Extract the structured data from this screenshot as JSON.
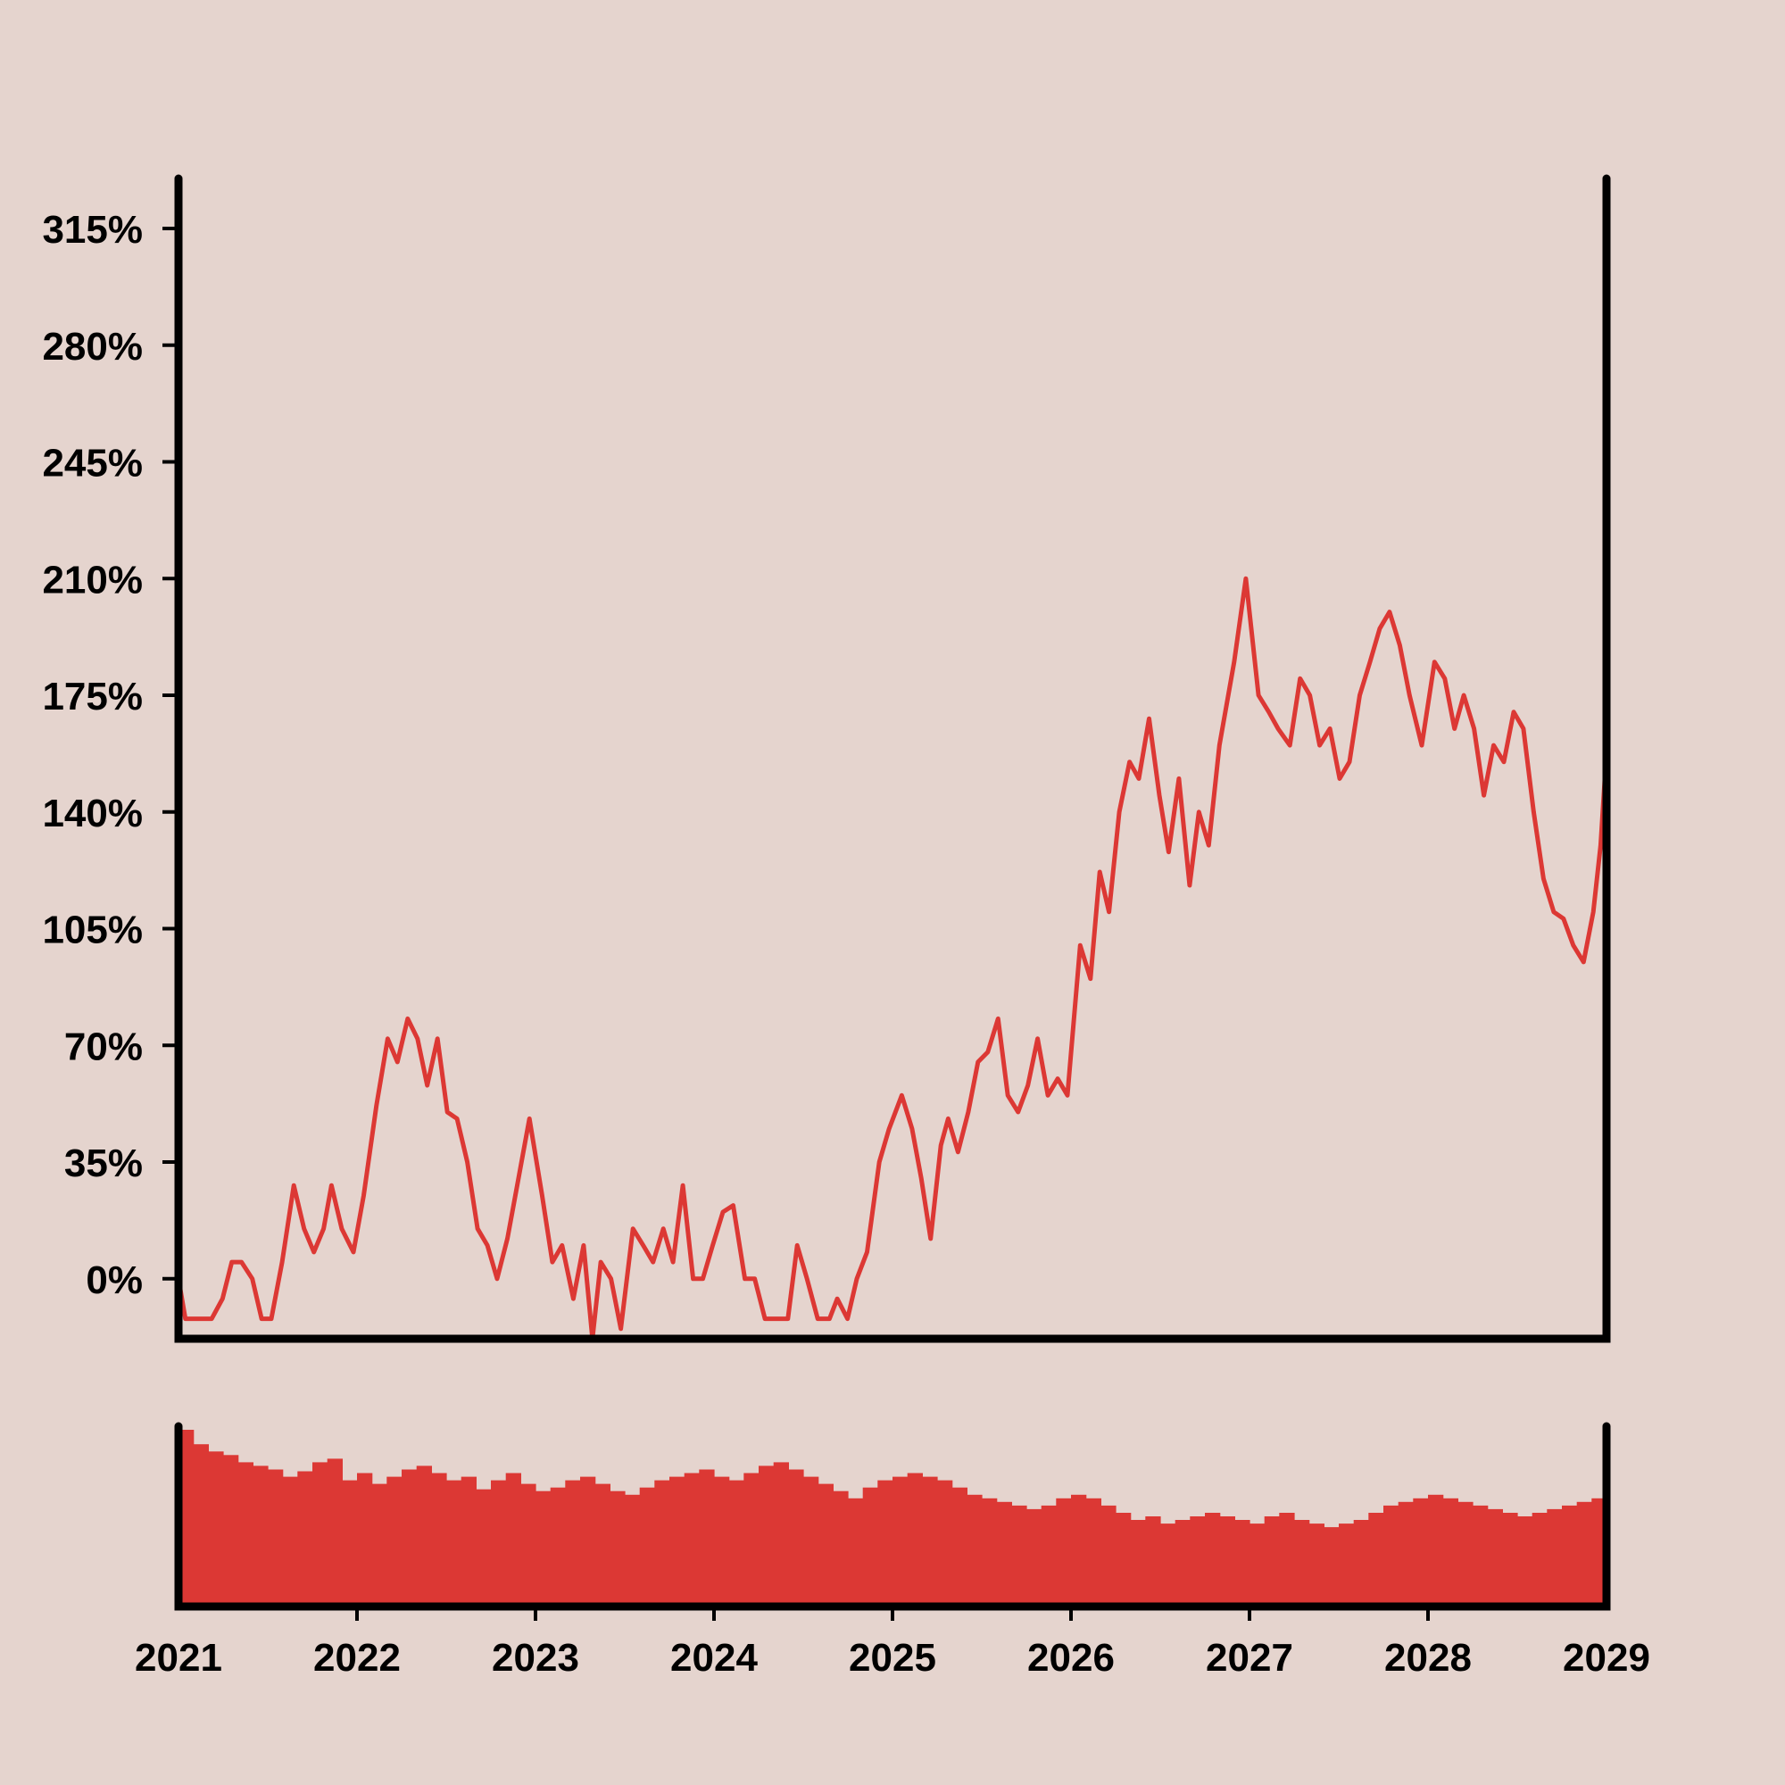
{
  "chart_data": {
    "type": "line",
    "title": "",
    "xlabel": "",
    "ylabel": "",
    "colors": {
      "background": "#e5d4ce",
      "line": "#dc3834",
      "volume": "#dc3834",
      "axis": "#000000"
    },
    "x_ticks": [
      "2021",
      "2022",
      "2023",
      "2024",
      "2025",
      "2026",
      "2027",
      "2028",
      "2029"
    ],
    "y_ticks": [
      "0%",
      "35%",
      "70%",
      "105%",
      "140%",
      "175%",
      "210%",
      "245%",
      "280%",
      "315%"
    ],
    "xlim": [
      "2021-01-01",
      "2029-01-01"
    ],
    "ylim": [
      -18,
      330
    ],
    "grid": false,
    "legend": "none",
    "series": [
      {
        "values": [
          [
            "2021-01-01",
            0
          ],
          [
            "2021-01-15",
            -12
          ],
          [
            "2021-02-15",
            -12
          ],
          [
            "2021-03-10",
            -12
          ],
          [
            "2021-04-01",
            -6
          ],
          [
            "2021-04-20",
            5
          ],
          [
            "2021-05-10",
            5
          ],
          [
            "2021-06-01",
            0
          ],
          [
            "2021-06-20",
            -12
          ],
          [
            "2021-07-10",
            -12
          ],
          [
            "2021-08-01",
            5
          ],
          [
            "2021-08-25",
            28
          ],
          [
            "2021-09-15",
            15
          ],
          [
            "2021-10-05",
            8
          ],
          [
            "2021-10-25",
            15
          ],
          [
            "2021-11-10",
            28
          ],
          [
            "2021-12-01",
            15
          ],
          [
            "2021-12-25",
            8
          ],
          [
            "2022-01-15",
            25
          ],
          [
            "2022-02-10",
            52
          ],
          [
            "2022-03-05",
            72
          ],
          [
            "2022-03-25",
            65
          ],
          [
            "2022-04-15",
            78
          ],
          [
            "2022-05-05",
            72
          ],
          [
            "2022-05-25",
            58
          ],
          [
            "2022-06-15",
            72
          ],
          [
            "2022-07-05",
            50
          ],
          [
            "2022-07-25",
            48
          ],
          [
            "2022-08-15",
            35
          ],
          [
            "2022-09-05",
            15
          ],
          [
            "2022-09-25",
            10
          ],
          [
            "2022-10-15",
            0
          ],
          [
            "2022-11-05",
            12
          ],
          [
            "2022-11-25",
            28
          ],
          [
            "2022-12-20",
            48
          ],
          [
            "2023-01-15",
            25
          ],
          [
            "2023-02-05",
            5
          ],
          [
            "2023-02-25",
            10
          ],
          [
            "2023-03-20",
            -6
          ],
          [
            "2023-04-10",
            10
          ],
          [
            "2023-04-28",
            -18
          ],
          [
            "2023-05-15",
            5
          ],
          [
            "2023-06-05",
            0
          ],
          [
            "2023-06-25",
            -15
          ],
          [
            "2023-07-20",
            15
          ],
          [
            "2023-08-10",
            10
          ],
          [
            "2023-08-30",
            5
          ],
          [
            "2023-09-20",
            15
          ],
          [
            "2023-10-10",
            5
          ],
          [
            "2023-10-30",
            28
          ],
          [
            "2023-11-20",
            0
          ],
          [
            "2023-12-10",
            0
          ],
          [
            "2023-12-30",
            10
          ],
          [
            "2024-01-20",
            20
          ],
          [
            "2024-02-10",
            22
          ],
          [
            "2024-03-05",
            0
          ],
          [
            "2024-03-25",
            0
          ],
          [
            "2024-04-15",
            -12
          ],
          [
            "2024-05-10",
            -12
          ],
          [
            "2024-06-01",
            -12
          ],
          [
            "2024-06-20",
            10
          ],
          [
            "2024-07-10",
            0
          ],
          [
            "2024-08-01",
            -12
          ],
          [
            "2024-08-25",
            -12
          ],
          [
            "2024-09-10",
            -6
          ],
          [
            "2024-10-01",
            -12
          ],
          [
            "2024-10-20",
            0
          ],
          [
            "2024-11-10",
            8
          ],
          [
            "2024-12-05",
            35
          ],
          [
            "2024-12-25",
            45
          ],
          [
            "2025-01-20",
            55
          ],
          [
            "2025-02-10",
            45
          ],
          [
            "2025-03-01",
            30
          ],
          [
            "2025-03-20",
            12
          ],
          [
            "2025-04-10",
            40
          ],
          [
            "2025-04-25",
            48
          ],
          [
            "2025-05-15",
            38
          ],
          [
            "2025-06-05",
            50
          ],
          [
            "2025-06-25",
            65
          ],
          [
            "2025-07-15",
            68
          ],
          [
            "2025-08-05",
            78
          ],
          [
            "2025-08-25",
            55
          ],
          [
            "2025-09-15",
            50
          ],
          [
            "2025-10-05",
            58
          ],
          [
            "2025-10-25",
            72
          ],
          [
            "2025-11-15",
            55
          ],
          [
            "2025-12-05",
            60
          ],
          [
            "2025-12-25",
            55
          ],
          [
            "2026-01-20",
            100
          ],
          [
            "2026-02-10",
            90
          ],
          [
            "2026-03-01",
            122
          ],
          [
            "2026-03-20",
            110
          ],
          [
            "2026-04-10",
            140
          ],
          [
            "2026-05-01",
            155
          ],
          [
            "2026-05-20",
            150
          ],
          [
            "2026-06-10",
            168
          ],
          [
            "2026-07-01",
            145
          ],
          [
            "2026-07-20",
            128
          ],
          [
            "2026-08-10",
            150
          ],
          [
            "2026-09-01",
            118
          ],
          [
            "2026-09-20",
            140
          ],
          [
            "2026-10-10",
            130
          ],
          [
            "2026-11-01",
            160
          ],
          [
            "2026-12-01",
            185
          ],
          [
            "2026-12-25",
            210
          ],
          [
            "2027-01-20",
            175
          ],
          [
            "2027-02-10",
            170
          ],
          [
            "2027-03-01",
            165
          ],
          [
            "2027-03-25",
            160
          ],
          [
            "2027-04-15",
            180
          ],
          [
            "2027-05-05",
            175
          ],
          [
            "2027-05-25",
            160
          ],
          [
            "2027-06-15",
            165
          ],
          [
            "2027-07-05",
            150
          ],
          [
            "2027-07-25",
            155
          ],
          [
            "2027-08-15",
            175
          ],
          [
            "2027-09-05",
            185
          ],
          [
            "2027-09-25",
            195
          ],
          [
            "2027-10-15",
            200
          ],
          [
            "2027-11-05",
            190
          ],
          [
            "2027-11-25",
            175
          ],
          [
            "2027-12-20",
            160
          ],
          [
            "2028-01-15",
            185
          ],
          [
            "2028-02-05",
            180
          ],
          [
            "2028-02-25",
            165
          ],
          [
            "2028-03-15",
            175
          ],
          [
            "2028-04-05",
            165
          ],
          [
            "2028-04-25",
            145
          ],
          [
            "2028-05-15",
            160
          ],
          [
            "2028-06-05",
            155
          ],
          [
            "2028-06-25",
            170
          ],
          [
            "2028-07-15",
            165
          ],
          [
            "2028-08-05",
            140
          ],
          [
            "2028-08-25",
            120
          ],
          [
            "2028-09-15",
            110
          ],
          [
            "2028-10-05",
            108
          ],
          [
            "2028-10-25",
            100
          ],
          [
            "2028-11-15",
            95
          ],
          [
            "2028-12-05",
            110
          ],
          [
            "2028-12-20",
            130
          ],
          [
            "2029-01-01",
            158
          ]
        ]
      }
    ],
    "volume": [
      0.98,
      0.9,
      0.86,
      0.84,
      0.8,
      0.78,
      0.76,
      0.72,
      0.75,
      0.8,
      0.82,
      0.7,
      0.74,
      0.68,
      0.72,
      0.76,
      0.78,
      0.74,
      0.7,
      0.72,
      0.65,
      0.7,
      0.74,
      0.68,
      0.64,
      0.66,
      0.7,
      0.72,
      0.68,
      0.64,
      0.62,
      0.66,
      0.7,
      0.72,
      0.74,
      0.76,
      0.72,
      0.7,
      0.74,
      0.78,
      0.8,
      0.76,
      0.72,
      0.68,
      0.64,
      0.6,
      0.66,
      0.7,
      0.72,
      0.74,
      0.72,
      0.7,
      0.66,
      0.62,
      0.6,
      0.58,
      0.56,
      0.54,
      0.56,
      0.6,
      0.62,
      0.6,
      0.56,
      0.52,
      0.48,
      0.5,
      0.46,
      0.48,
      0.5,
      0.52,
      0.5,
      0.48,
      0.46,
      0.5,
      0.52,
      0.48,
      0.46,
      0.44,
      0.46,
      0.48,
      0.52,
      0.56,
      0.58,
      0.6,
      0.62,
      0.6,
      0.58,
      0.56,
      0.54,
      0.52,
      0.5,
      0.52,
      0.54,
      0.56,
      0.58,
      0.6
    ]
  }
}
